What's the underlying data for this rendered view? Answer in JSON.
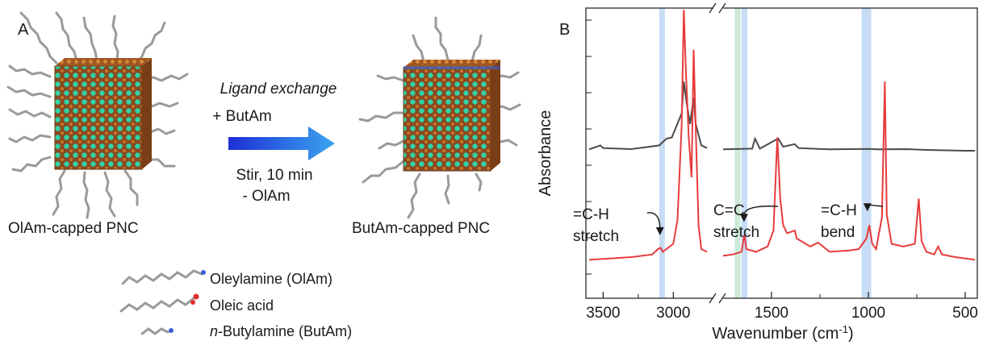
{
  "panel_a": {
    "label": "A",
    "left_caption": "OlAm-capped PNC",
    "right_caption": "ButAm-capped PNC",
    "process": {
      "title": "Ligand exchange",
      "add": "+ ButAm",
      "condition": "Stir, 10 min",
      "remove": "- OlAm"
    },
    "legend": [
      {
        "name": "Oleylamine (OlAm)",
        "prefix": "",
        "rest": ""
      },
      {
        "name": "Oleic acid",
        "prefix": "",
        "rest": ""
      },
      {
        "name": "",
        "prefix": "n",
        "rest": "-Butylamine (ButAm)"
      }
    ]
  },
  "panel_b": {
    "label": "B",
    "chart_data": {
      "type": "line",
      "xlabel": "Wavenumber (cm",
      "xlabel_sup": "-1",
      "xlabel_tail": ")",
      "ylabel": "Absorbance",
      "x_axis": "reversed, broken between 2800 and 1750",
      "xticks": [
        "3500",
        "3000",
        "1500",
        "1000",
        "500"
      ],
      "series": [
        {
          "color": "#4a4a4a",
          "points": [
            [
              3600,
              0.505
            ],
            [
              3520,
              0.52
            ],
            [
              3500,
              0.51
            ],
            [
              3300,
              0.506
            ],
            [
              3100,
              0.52
            ],
            [
              3050,
              0.545
            ],
            [
              3010,
              0.55
            ],
            [
              2960,
              0.615
            ],
            [
              2940,
              0.64
            ],
            [
              2925,
              0.76
            ],
            [
              2905,
              0.68
            ],
            [
              2880,
              0.6
            ],
            [
              2855,
              0.7
            ],
            [
              2840,
              0.6
            ],
            [
              2800,
              0.52
            ],
            [
              2760,
              0.51
            ],
            [
              1750,
              0.505
            ],
            [
              1600,
              0.508
            ],
            [
              1585,
              0.545
            ],
            [
              1560,
              0.508
            ],
            [
              1480,
              0.54
            ],
            [
              1465,
              0.545
            ],
            [
              1440,
              0.515
            ],
            [
              1380,
              0.525
            ],
            [
              1360,
              0.51
            ],
            [
              1200,
              0.505
            ],
            [
              1000,
              0.507
            ],
            [
              950,
              0.505
            ],
            [
              800,
              0.506
            ],
            [
              700,
              0.503
            ],
            [
              500,
              0.5
            ],
            [
              450,
              0.5
            ]
          ]
        },
        {
          "color": "#e63b3b",
          "points": [
            [
              3600,
              0.09
            ],
            [
              3300,
              0.1
            ],
            [
              3150,
              0.11
            ],
            [
              3110,
              0.13
            ],
            [
              3090,
              0.135
            ],
            [
              3075,
              0.12
            ],
            [
              3000,
              0.15
            ],
            [
              2970,
              0.24
            ],
            [
              2940,
              0.6
            ],
            [
              2925,
              1.03
            ],
            [
              2910,
              0.8
            ],
            [
              2890,
              0.55
            ],
            [
              2870,
              0.4
            ],
            [
              2855,
              0.88
            ],
            [
              2840,
              0.58
            ],
            [
              2820,
              0.22
            ],
            [
              2800,
              0.13
            ],
            [
              2760,
              0.12
            ],
            [
              1750,
              0.105
            ],
            [
              1700,
              0.11
            ],
            [
              1655,
              0.12
            ],
            [
              1640,
              0.185
            ],
            [
              1630,
              0.13
            ],
            [
              1580,
              0.12
            ],
            [
              1520,
              0.14
            ],
            [
              1490,
              0.2
            ],
            [
              1470,
              0.55
            ],
            [
              1455,
              0.32
            ],
            [
              1440,
              0.22
            ],
            [
              1420,
              0.19
            ],
            [
              1380,
              0.2
            ],
            [
              1370,
              0.17
            ],
            [
              1300,
              0.14
            ],
            [
              1260,
              0.155
            ],
            [
              1200,
              0.12
            ],
            [
              1100,
              0.125
            ],
            [
              1050,
              0.13
            ],
            [
              1010,
              0.17
            ],
            [
              995,
              0.22
            ],
            [
              980,
              0.15
            ],
            [
              960,
              0.13
            ],
            [
              930,
              0.25
            ],
            [
              915,
              0.76
            ],
            [
              905,
              0.26
            ],
            [
              880,
              0.15
            ],
            [
              820,
              0.14
            ],
            [
              760,
              0.15
            ],
            [
              740,
              0.32
            ],
            [
              725,
              0.16
            ],
            [
              700,
              0.12
            ],
            [
              660,
              0.11
            ],
            [
              640,
              0.14
            ],
            [
              620,
              0.11
            ],
            [
              550,
              0.1
            ],
            [
              450,
              0.09
            ]
          ]
        }
      ],
      "bands": [
        {
          "from": 3100,
          "to": 3060,
          "color": "#c7dcf5"
        },
        {
          "from": 1690,
          "to": 1660,
          "color": "#cde9d8"
        },
        {
          "from": 1655,
          "to": 1625,
          "color": "#c7dcf5"
        },
        {
          "from": 1035,
          "to": 985,
          "color": "#c7dcf5"
        }
      ],
      "annotations": [
        {
          "line1": "=C-H",
          "line2": "stretch"
        },
        {
          "line1": "C=C",
          "line2": "stretch"
        },
        {
          "line1": "=C-H",
          "line2": "bend"
        }
      ]
    }
  }
}
